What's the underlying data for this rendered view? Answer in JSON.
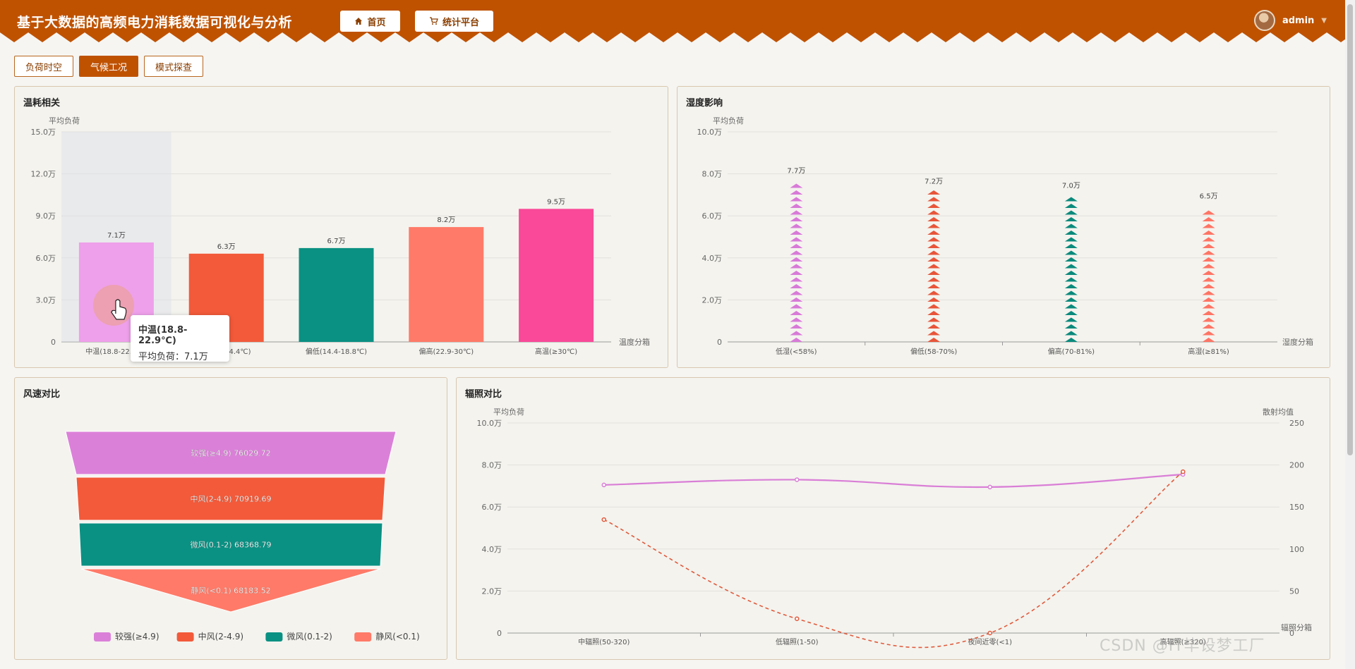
{
  "header": {
    "title": "基于大数据的高频电力消耗数据可视化与分析",
    "home_label": "首页",
    "stats_label": "统计平台",
    "user_name": "admin",
    "accent_color": "#bf5200"
  },
  "tabs": [
    {
      "label": "负荷时空",
      "active": false
    },
    {
      "label": "气候工况",
      "active": true
    },
    {
      "label": "模式探查",
      "active": false
    }
  ],
  "panels": {
    "temp": {
      "title": "温耗相关"
    },
    "humidity": {
      "title": "湿度影响"
    },
    "wind": {
      "title": "风速对比"
    },
    "radiation": {
      "title": "辐照对比"
    }
  },
  "tooltip": {
    "title": "中温(18.8-22.9℃)",
    "label": "平均负荷：",
    "value": "7.1万"
  },
  "watermark": "CSDN @IT毕设梦工厂",
  "chart_data": [
    {
      "type": "bar",
      "title": "温耗相关",
      "ylabel": "平均负荷",
      "xlabel": "温度分箱",
      "ylim": [
        0,
        150000
      ],
      "yticks": [
        "0",
        "3.0万",
        "6.0万",
        "9.0万",
        "12.0万",
        "15.0万"
      ],
      "categories": [
        "中温(18.8-22.9℃)",
        "偏低(<14.4℃)",
        "偏低(14.4-18.8℃)",
        "偏高(22.9-30℃)",
        "高温(≥30℃)"
      ],
      "values": [
        71000,
        63000,
        67000,
        82000,
        95000
      ],
      "value_labels": [
        "7.1万",
        "6.3万",
        "6.7万",
        "8.2万",
        "9.5万"
      ],
      "colors": [
        "#eea0ea",
        "#f25a3a",
        "#0a9183",
        "#ff7a68",
        "#f94998"
      ],
      "highlighted_index": 0
    },
    {
      "type": "bar",
      "title": "湿度影响",
      "ylabel": "平均负荷",
      "xlabel": "湿度分箱",
      "ylim": [
        0,
        100000
      ],
      "yticks": [
        "0",
        "2.0万",
        "4.0万",
        "6.0万",
        "8.0万",
        "10.0万"
      ],
      "categories": [
        "低湿(<58%)",
        "偏低(58-70%)",
        "偏高(70-81%)",
        "高湿(≥81%)"
      ],
      "values": [
        77000,
        72000,
        70000,
        65000
      ],
      "value_labels": [
        "7.7万",
        "7.2万",
        "7.0万",
        "6.5万"
      ],
      "colors": [
        "#d87ad8",
        "#e8553a",
        "#0a8a7c",
        "#ff7464"
      ]
    },
    {
      "type": "funnel",
      "title": "风速对比",
      "categories": [
        "较强(≥4.9)",
        "中风(2-4.9)",
        "微风(0.1-2)",
        "静风(<0.1)"
      ],
      "values": [
        76029.72,
        70919.69,
        68368.79,
        68183.52
      ],
      "colors": [
        "#db80d9",
        "#f25a3a",
        "#0a9183",
        "#ff7a68"
      ],
      "legend": "bottom"
    },
    {
      "type": "line",
      "title": "辐照对比",
      "ylabel": "平均负荷",
      "y2label": "散射均值",
      "xlabel": "辐照分箱",
      "ylim": [
        0,
        100000
      ],
      "y2lim": [
        0,
        250
      ],
      "yticks": [
        "0",
        "2.0万",
        "4.0万",
        "6.0万",
        "8.0万",
        "10.0万"
      ],
      "y2ticks": [
        "0",
        "50",
        "100",
        "150",
        "200",
        "250"
      ],
      "categories": [
        "中辐照(50-320)",
        "低辐照(1-50)",
        "夜间近零(<1)",
        "高辐照(≥320)"
      ],
      "series": [
        {
          "values": [
            70500,
            73000,
            69500,
            75500
          ],
          "axis": "left",
          "color": "#d97ed6",
          "style": "solid"
        },
        {
          "values": [
            135,
            17,
            0,
            192
          ],
          "axis": "right",
          "color": "#e05a3c",
          "style": "dashed"
        }
      ]
    }
  ]
}
